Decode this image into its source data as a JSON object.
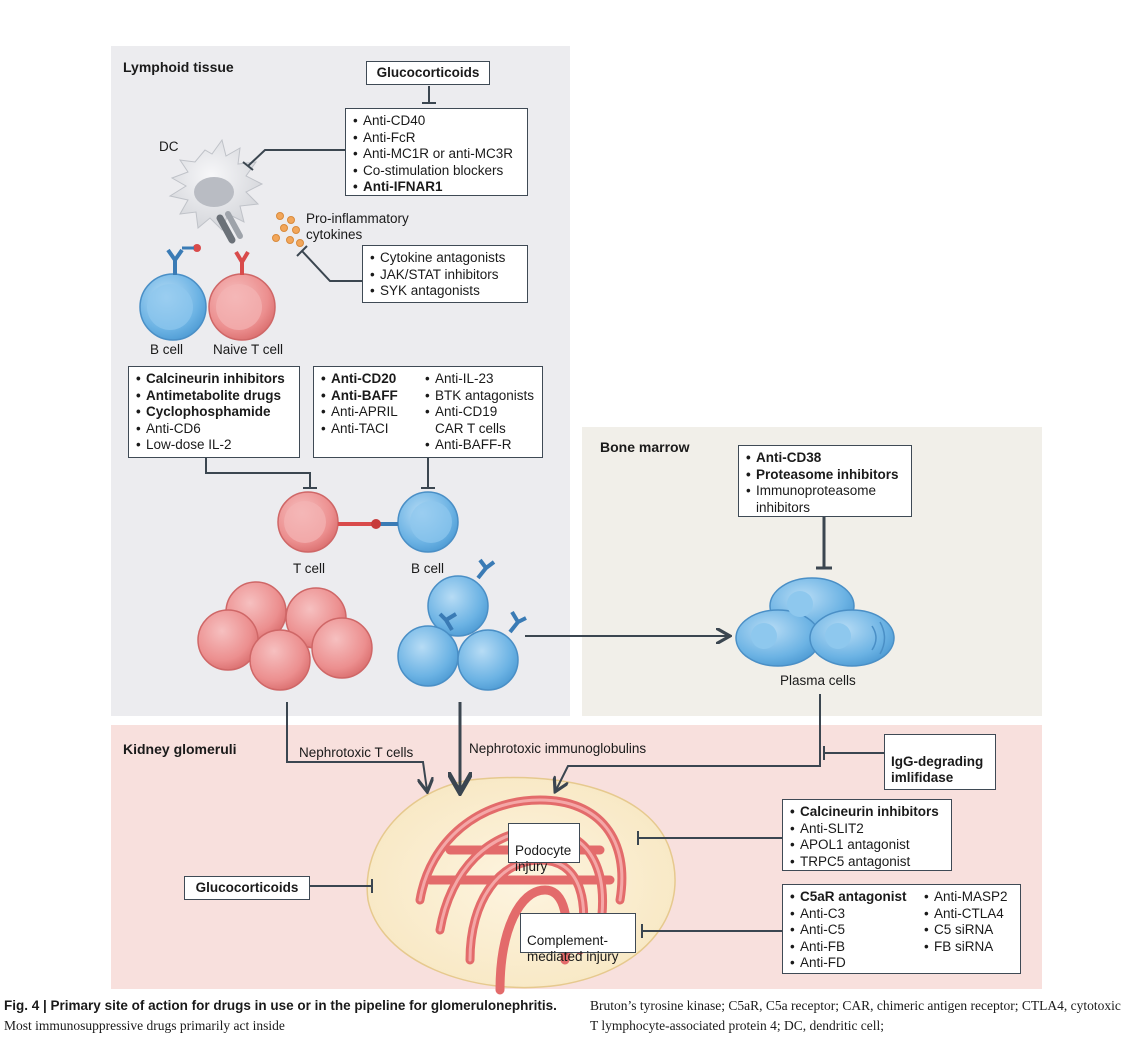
{
  "regions": {
    "lymphoid": "Lymphoid tissue",
    "bone_marrow": "Bone marrow",
    "kidney": "Kidney glomeruli"
  },
  "labels": {
    "dc": "DC",
    "cytokines": "Pro-inflammatory\ncytokines",
    "b_cell_top": "B cell",
    "naive_t": "Naive T cell",
    "t_cell": "T cell",
    "b_cell": "B cell",
    "plasma": "Plasma cells",
    "nephro_t": "Nephrotoxic T cells",
    "nephro_ig": "Nephrotoxic immunoglobulins",
    "podocyte": "Podocyte\ninjury",
    "complement": "Complement-\nmediated injury"
  },
  "boxes": {
    "glucocorticoids_top": "Glucocorticoids",
    "glucocorticoids_kidney": "Glucocorticoids",
    "igg": "IgG-degrading\nimlifidase",
    "dc_drugs": [
      {
        "text": "Anti-CD40",
        "bold": false
      },
      {
        "text": "Anti-FcR",
        "bold": false
      },
      {
        "text": "Anti-MC1R or anti-MC3R",
        "bold": false
      },
      {
        "text": "Co-stimulation blockers",
        "bold": false
      },
      {
        "text": "Anti-IFNAR1",
        "bold": true
      }
    ],
    "cytokine_drugs": [
      {
        "text": "Cytokine antagonists",
        "bold": false
      },
      {
        "text": "JAK/STAT inhibitors",
        "bold": false
      },
      {
        "text": "SYK antagonists",
        "bold": false
      }
    ],
    "t_drugs": [
      {
        "text": "Calcineurin inhibitors",
        "bold": true
      },
      {
        "text": "Antimetabolite drugs",
        "bold": true
      },
      {
        "text": "Cyclophosphamide",
        "bold": true
      },
      {
        "text": "Anti-CD6",
        "bold": false
      },
      {
        "text": "Low-dose IL-2",
        "bold": false
      }
    ],
    "b_drugs_left": [
      {
        "text": "Anti-CD20",
        "bold": true
      },
      {
        "text": "Anti-BAFF",
        "bold": true
      },
      {
        "text": "Anti-APRIL",
        "bold": false
      },
      {
        "text": "Anti-TACI",
        "bold": false
      }
    ],
    "b_drugs_right": [
      {
        "text": "Anti-IL-23",
        "bold": false
      },
      {
        "text": "BTK antagonists",
        "bold": false
      },
      {
        "text": "Anti-CD19",
        "bold": false
      },
      {
        "text": "CAR T cells",
        "bold": false,
        "cont": true
      },
      {
        "text": "Anti-BAFF-R",
        "bold": false
      }
    ],
    "plasma_drugs": [
      {
        "text": "Anti-CD38",
        "bold": true
      },
      {
        "text": "Proteasome inhibitors",
        "bold": true
      },
      {
        "text": "Immunoproteasome",
        "bold": false
      },
      {
        "text": "inhibitors",
        "bold": false,
        "cont": true
      }
    ],
    "podocyte_drugs": [
      {
        "text": "Calcineurin inhibitors",
        "bold": true
      },
      {
        "text": "Anti-SLIT2",
        "bold": false
      },
      {
        "text": "APOL1 antagonist",
        "bold": false
      },
      {
        "text": "TRPC5 antagonist",
        "bold": false
      }
    ],
    "complement_left": [
      {
        "text": "C5aR antagonist",
        "bold": true
      },
      {
        "text": "Anti-C3",
        "bold": false
      },
      {
        "text": "Anti-C5",
        "bold": false
      },
      {
        "text": "Anti-FB",
        "bold": false
      },
      {
        "text": "Anti-FD",
        "bold": false
      }
    ],
    "complement_right": [
      {
        "text": "Anti-MASP2",
        "bold": false
      },
      {
        "text": "Anti-CTLA4",
        "bold": false
      },
      {
        "text": "C5 siRNA",
        "bold": false
      },
      {
        "text": "FB siRNA",
        "bold": false
      }
    ]
  },
  "caption": {
    "lead_bold": "Fig. 4 | Primary site of action for drugs in use or in the pipeline for glomerulonephritis.",
    "lead_text": " Most immunosuppressive drugs primarily act inside",
    "right_text": "Bruton’s tyrosine kinase; C5aR, C5a receptor; CAR, chimeric antigen receptor; CTLA4, cytotoxic T lymphocyte-associated protein 4; DC, dendritic cell;"
  },
  "colors": {
    "lymphoid_bg": "#ececef",
    "bone_bg": "#f1efe9",
    "kidney_bg": "#f8e0dd",
    "t_cell": "#ee9a9a",
    "b_cell": "#6fb6e6",
    "arrow": "#3b4650"
  }
}
